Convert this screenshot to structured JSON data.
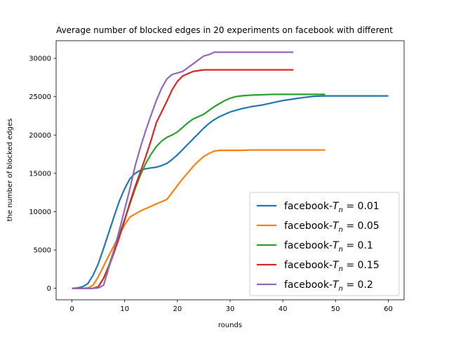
{
  "chart_data": {
    "type": "line",
    "title": "Average number of blocked edges in 20 experiments on facebook with different",
    "xlabel": "rounds",
    "ylabel": "the number of blocked edges",
    "xlim": [
      -3,
      63
    ],
    "ylim": [
      -1500,
      32300
    ],
    "xticks": [
      0,
      10,
      20,
      30,
      40,
      50,
      60
    ],
    "yticks": [
      0,
      5000,
      10000,
      15000,
      20000,
      25000,
      30000
    ],
    "grid": false,
    "legend_position": "lower-right",
    "series": [
      {
        "name": "facebook-Tn = 0.01",
        "label_prefix": "facebook-",
        "label_var": "T",
        "label_sub": "n",
        "label_suffix": " =  0.01",
        "color": "#1f77b4",
        "x": [
          0,
          1,
          2,
          3,
          4,
          5,
          6,
          7,
          8,
          9,
          10,
          11,
          12,
          13,
          14,
          15,
          16,
          17,
          18,
          19,
          20,
          21,
          22,
          23,
          24,
          25,
          26,
          27,
          28,
          29,
          30,
          32,
          34,
          36,
          38,
          40,
          42,
          44,
          46,
          48,
          50,
          52,
          54,
          56,
          58,
          60
        ],
        "y": [
          0,
          50,
          200,
          600,
          1700,
          3200,
          5200,
          7300,
          9400,
          11400,
          13000,
          14300,
          15000,
          15400,
          15600,
          15700,
          15800,
          16000,
          16300,
          16800,
          17400,
          18100,
          18800,
          19500,
          20200,
          20900,
          21500,
          22000,
          22400,
          22700,
          23000,
          23400,
          23700,
          23900,
          24200,
          24500,
          24700,
          24900,
          25050,
          25100,
          25100,
          25100,
          25100,
          25100,
          25100,
          25100
        ]
      },
      {
        "name": "facebook-Tn = 0.05",
        "label_prefix": "facebook-",
        "label_var": "T",
        "label_sub": "n",
        "label_suffix": " =  0.05",
        "color": "#ff7f0e",
        "x": [
          0,
          2,
          3,
          4,
          5,
          6,
          7,
          8,
          9,
          10,
          11,
          12,
          13,
          14,
          15,
          16,
          17,
          18,
          19,
          20,
          21,
          22,
          23,
          24,
          25,
          26,
          27,
          28,
          30,
          32,
          34,
          36,
          38,
          40,
          42,
          44,
          46,
          48
        ],
        "y": [
          0,
          0,
          50,
          400,
          1500,
          2900,
          4300,
          5600,
          7000,
          8300,
          9300,
          9700,
          10100,
          10400,
          10700,
          11000,
          11300,
          11600,
          12500,
          13400,
          14300,
          15100,
          15900,
          16600,
          17200,
          17600,
          17900,
          18000,
          18000,
          18000,
          18050,
          18050,
          18050,
          18050,
          18050,
          18050,
          18050,
          18050
        ]
      },
      {
        "name": "facebook-Tn = 0.1",
        "label_prefix": "facebook-",
        "label_var": "T",
        "label_sub": "n",
        "label_suffix": " =  0.1",
        "color": "#2ca02c",
        "x": [
          0,
          2,
          4,
          5,
          6,
          7,
          8,
          9,
          10,
          11,
          12,
          13,
          14,
          15,
          16,
          17,
          18,
          19,
          20,
          21,
          22,
          23,
          24,
          25,
          26,
          27,
          28,
          29,
          30,
          31,
          32,
          34,
          36,
          38,
          40,
          42,
          44,
          46,
          48
        ],
        "y": [
          0,
          0,
          0,
          200,
          1300,
          3000,
          5000,
          7000,
          9000,
          11000,
          13000,
          14800,
          16300,
          17500,
          18500,
          19200,
          19700,
          20000,
          20400,
          21000,
          21600,
          22100,
          22400,
          22700,
          23200,
          23700,
          24100,
          24500,
          24800,
          25000,
          25100,
          25200,
          25250,
          25300,
          25300,
          25300,
          25300,
          25300,
          25300
        ]
      },
      {
        "name": "facebook-Tn = 0.15",
        "label_prefix": "facebook-",
        "label_var": "T",
        "label_sub": "n",
        "label_suffix": " =  0.15",
        "color": "#d62728",
        "x": [
          0,
          2,
          4,
          5,
          6,
          7,
          8,
          9,
          10,
          11,
          12,
          13,
          14,
          15,
          16,
          17,
          18,
          19,
          20,
          21,
          22,
          23,
          24,
          25,
          26,
          28,
          30,
          32,
          34,
          36,
          38,
          40,
          42
        ],
        "y": [
          0,
          0,
          0,
          200,
          1300,
          2800,
          4700,
          6700,
          8900,
          11200,
          13300,
          15200,
          17200,
          19300,
          21600,
          23000,
          24400,
          25900,
          27000,
          27700,
          28000,
          28300,
          28400,
          28500,
          28500,
          28500,
          28500,
          28500,
          28500,
          28500,
          28500,
          28500,
          28500
        ]
      },
      {
        "name": "facebook-Tn = 0.2",
        "label_prefix": "facebook-",
        "label_var": "T",
        "label_sub": "n",
        "label_suffix": " =  0.2",
        "color": "#9467bd",
        "x": [
          0,
          2,
          4,
          5,
          6,
          7,
          8,
          9,
          10,
          11,
          12,
          13,
          14,
          15,
          16,
          17,
          18,
          19,
          20,
          21,
          22,
          23,
          24,
          25,
          26,
          27,
          28,
          30,
          32,
          34,
          36,
          38,
          40,
          42
        ],
        "y": [
          0,
          0,
          0,
          50,
          400,
          2700,
          5100,
          7600,
          10300,
          13000,
          16000,
          18400,
          20600,
          22600,
          24500,
          26100,
          27300,
          27900,
          28100,
          28300,
          28800,
          29300,
          29800,
          30300,
          30500,
          30800,
          30800,
          30800,
          30800,
          30800,
          30800,
          30800,
          30800,
          30800
        ]
      }
    ]
  }
}
